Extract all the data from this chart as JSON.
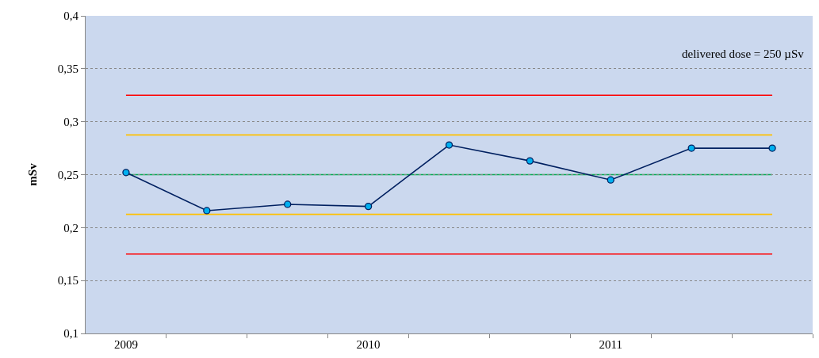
{
  "chart_data": {
    "type": "line",
    "ylabel": "mSv",
    "categories": [
      "2009",
      null,
      null,
      "2010",
      null,
      null,
      "2011",
      null,
      null
    ],
    "series": [
      {
        "color": "#002060",
        "values": [
          0.252,
          0.216,
          0.222,
          0.22,
          0.278,
          0.263,
          0.245,
          0.275,
          0.275
        ]
      }
    ],
    "ylim": [
      0.1,
      0.4
    ],
    "yticks": [
      {
        "value": 0.1,
        "label": "0,1"
      },
      {
        "value": 0.15,
        "label": "0,15"
      },
      {
        "value": 0.2,
        "label": "0,2"
      },
      {
        "value": 0.25,
        "label": "0,25"
      },
      {
        "value": 0.3,
        "label": "0,3"
      },
      {
        "value": 0.35,
        "label": "0,35"
      },
      {
        "value": 0.4,
        "label": "0,4"
      }
    ],
    "ref_lines": [
      {
        "axis": "y",
        "value": 0.325,
        "color": "#ff0000"
      },
      {
        "axis": "y",
        "value": 0.2875,
        "color": "#ffc000"
      },
      {
        "axis": "y",
        "value": 0.25,
        "color": "#00b050"
      },
      {
        "axis": "y",
        "value": 0.2125,
        "color": "#ffc000"
      },
      {
        "axis": "y",
        "value": 0.175,
        "color": "#ff0000"
      }
    ],
    "annotations": [
      "delivered dose = 250 µSv"
    ],
    "grid": "y",
    "marker": "circle",
    "line_style": "solid"
  }
}
